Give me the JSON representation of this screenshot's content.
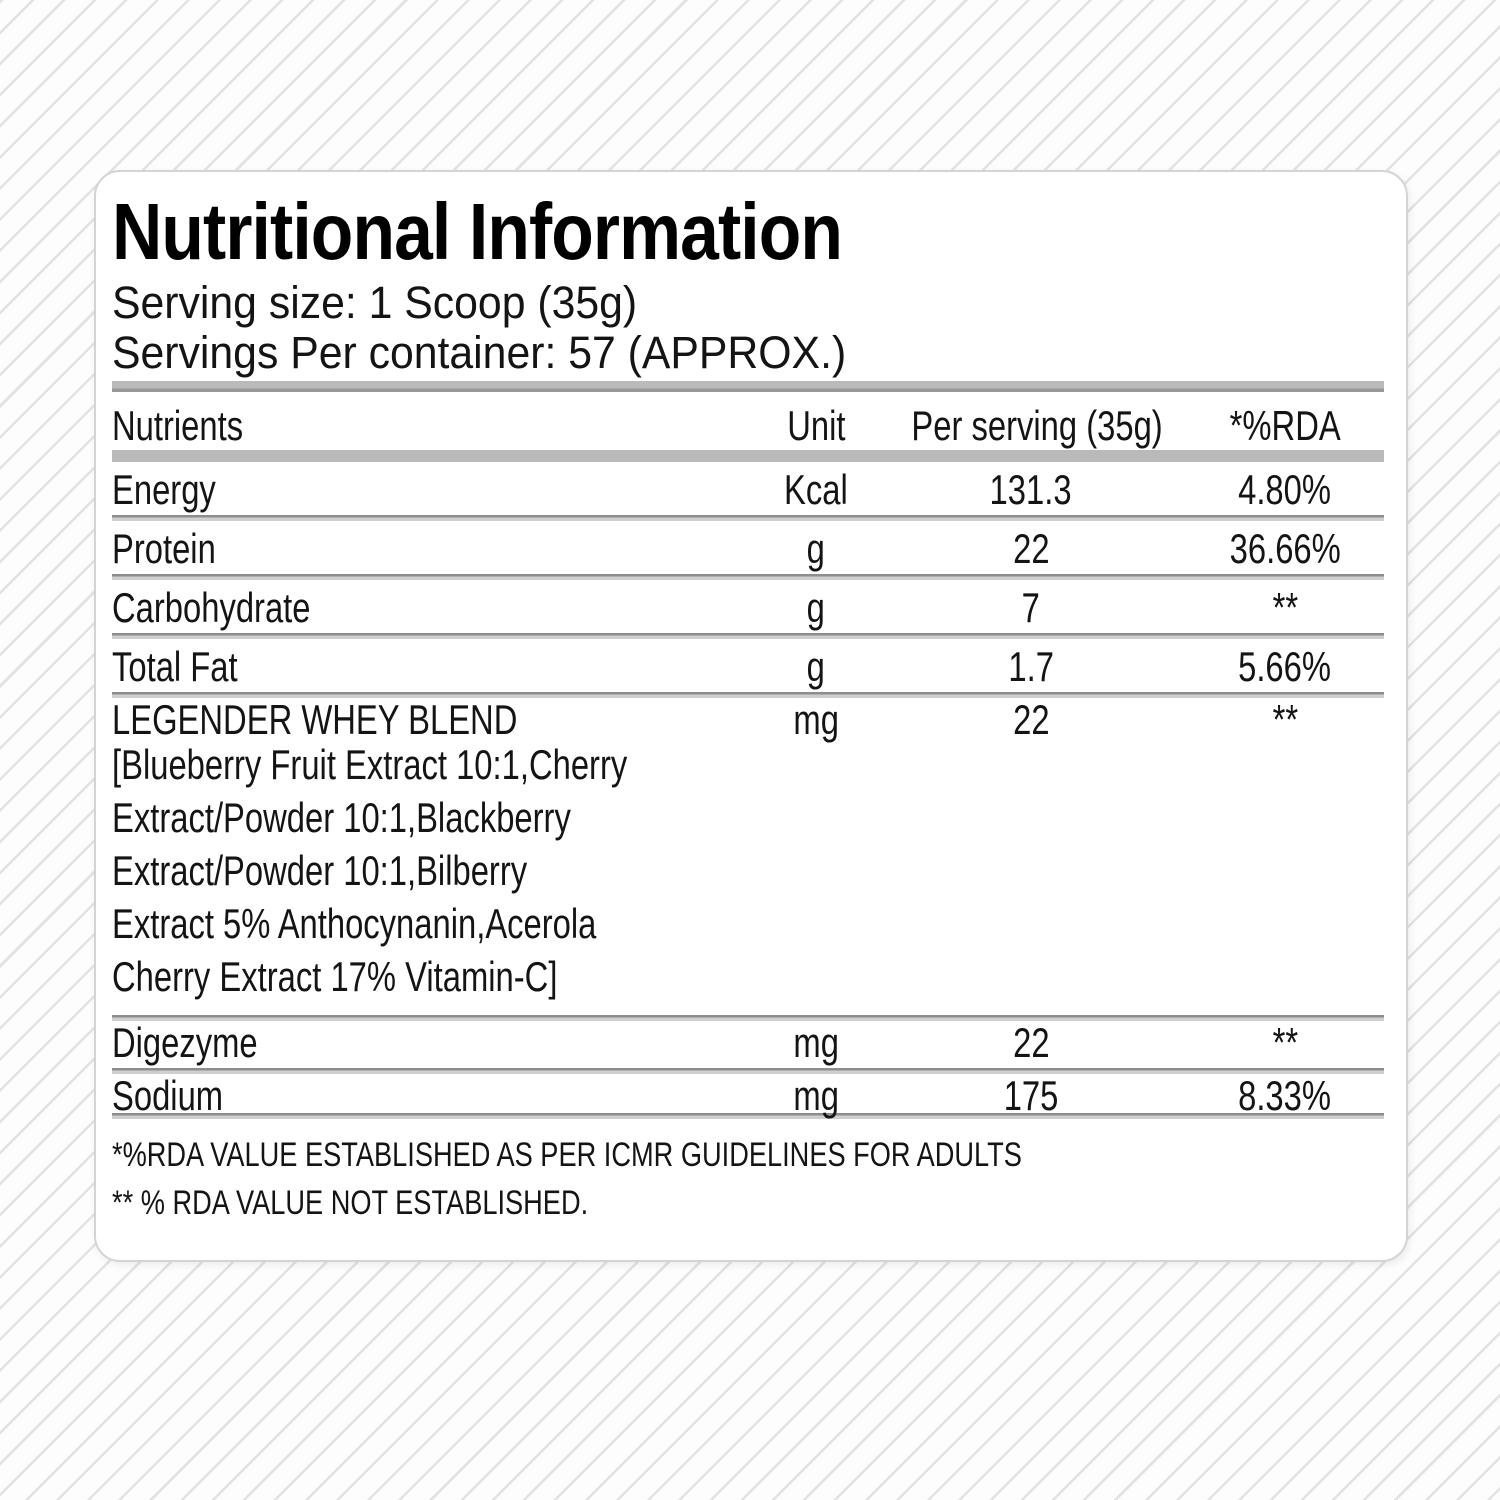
{
  "label": {
    "title": "Nutritional Information",
    "serving_size_line": "Serving size: 1 Scoop (35g)",
    "servings_per_container_line": "Servings Per container: 57 (APPROX.)",
    "table": {
      "headers": {
        "nutrients": "Nutrients",
        "unit": "Unit",
        "per_serving": "Per serving (35g)",
        "rda": "*%RDA"
      },
      "rows": [
        {
          "nutrient": "Energy",
          "unit": "Kcal",
          "per_serving": "131.3",
          "rda": "4.80%"
        },
        {
          "nutrient": "Protein",
          "unit": "g",
          "per_serving": "22",
          "rda": "36.66%"
        },
        {
          "nutrient": "Carbohydrate",
          "unit": "g",
          "per_serving": "7",
          "rda": "**"
        },
        {
          "nutrient": "Total Fat",
          "unit": "g",
          "per_serving": "1.7",
          "rda": "5.66%"
        },
        {
          "nutrient": "LEGENDER WHEY BLEND",
          "unit": "mg",
          "per_serving": "22",
          "rda": "**",
          "details": [
            "[Blueberry Fruit Extract 10:1,Cherry",
            "Extract/Powder 10:1,Blackberry",
            "Extract/Powder 10:1,Bilberry",
            "Extract 5% Anthocynanin,Acerola",
            "Cherry Extract 17% Vitamin-C]"
          ]
        },
        {
          "nutrient": "Digezyme",
          "unit": "mg",
          "per_serving": "22",
          "rda": "**"
        },
        {
          "nutrient": "Sodium",
          "unit": "mg",
          "per_serving": "175",
          "rda": "8.33%"
        }
      ]
    },
    "footnotes": [
      "*%RDA VALUE ESTABLISHED AS PER ICMR GUIDELINES FOR ADULTS",
      "** % RDA VALUE NOT ESTABLISHED."
    ],
    "colors": {
      "card_background": "#ffffff",
      "card_border": "#d4d4d4",
      "divider_gray": "#b9b9b9",
      "text": "#141414",
      "background_stripe": "#e2e2e2"
    }
  }
}
